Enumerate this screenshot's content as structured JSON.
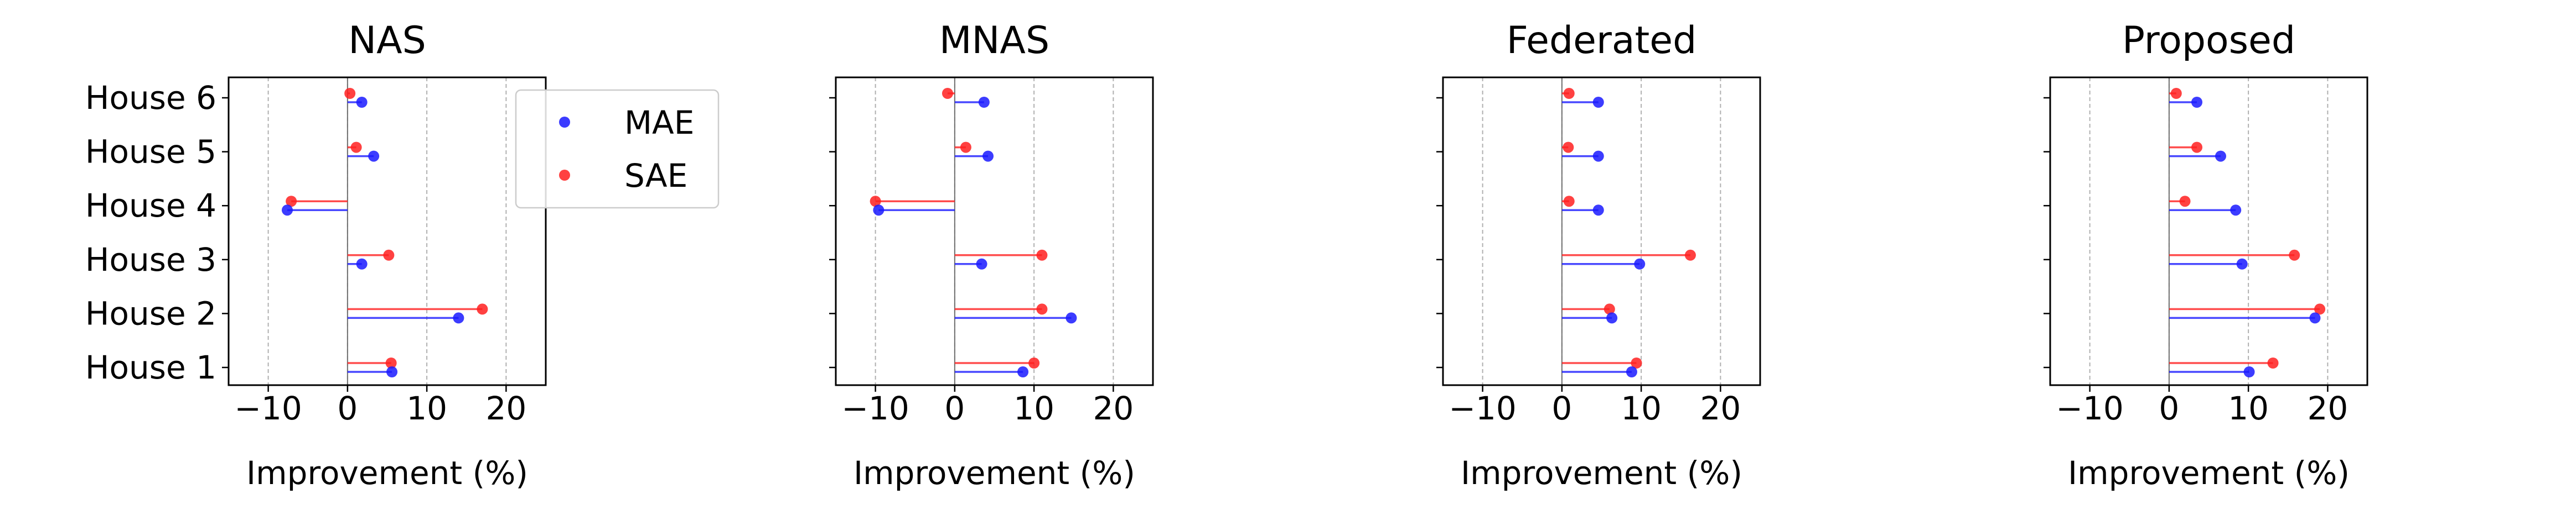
{
  "chart_data": [
    {
      "type": "lollipop-horizontal",
      "title": "NAS",
      "xlabel": "Improvement (%)",
      "categories": [
        "House 1",
        "House 2",
        "House 3",
        "House 4",
        "House 5",
        "House 6"
      ],
      "xlim": [
        -15,
        25
      ],
      "xticks": [
        -10,
        0,
        10,
        20
      ],
      "grid": "vertical dashed",
      "legend": "top-right",
      "series": [
        {
          "name": "MAE",
          "color": "#1a1aff",
          "values": [
            5.6,
            14.0,
            1.8,
            -7.6,
            3.3,
            1.8
          ]
        },
        {
          "name": "SAE",
          "color": "#ff2020",
          "values": [
            5.5,
            17.0,
            5.2,
            -7.1,
            1.1,
            0.3
          ]
        }
      ]
    },
    {
      "type": "lollipop-horizontal",
      "title": "MNAS",
      "xlabel": "Improvement (%)",
      "categories": [
        "House 1",
        "House 2",
        "House 3",
        "House 4",
        "House 5",
        "House 6"
      ],
      "xlim": [
        -15,
        25
      ],
      "xticks": [
        -10,
        0,
        10,
        20
      ],
      "grid": "vertical dashed",
      "series": [
        {
          "name": "MAE",
          "color": "#1a1aff",
          "values": [
            8.6,
            14.7,
            3.4,
            -9.6,
            4.2,
            3.7
          ]
        },
        {
          "name": "SAE",
          "color": "#ff2020",
          "values": [
            10.0,
            11.0,
            11.0,
            -10.0,
            1.4,
            -0.9
          ]
        }
      ]
    },
    {
      "type": "lollipop-horizontal",
      "title": "Federated",
      "xlabel": "Improvement (%)",
      "categories": [
        "House 1",
        "House 2",
        "House 3",
        "House 4",
        "House 5",
        "House 6"
      ],
      "xlim": [
        -15,
        25
      ],
      "xticks": [
        -10,
        0,
        10,
        20
      ],
      "grid": "vertical dashed",
      "series": [
        {
          "name": "MAE",
          "color": "#1a1aff",
          "values": [
            8.8,
            6.3,
            9.8,
            4.6,
            4.6,
            4.6
          ]
        },
        {
          "name": "SAE",
          "color": "#ff2020",
          "values": [
            9.4,
            6.0,
            16.2,
            0.9,
            0.8,
            0.9
          ]
        }
      ]
    },
    {
      "type": "lollipop-horizontal",
      "title": "Proposed",
      "xlabel": "Improvement (%)",
      "categories": [
        "House 1",
        "House 2",
        "House 3",
        "House 4",
        "House 5",
        "House 6"
      ],
      "xlim": [
        -15,
        25
      ],
      "xticks": [
        -10,
        0,
        10,
        20
      ],
      "grid": "vertical dashed",
      "series": [
        {
          "name": "MAE",
          "color": "#1a1aff",
          "values": [
            10.1,
            18.4,
            9.2,
            8.4,
            6.5,
            3.5
          ]
        },
        {
          "name": "SAE",
          "color": "#ff2020",
          "values": [
            13.1,
            19.0,
            15.8,
            2.0,
            3.5,
            0.9
          ]
        }
      ]
    }
  ]
}
